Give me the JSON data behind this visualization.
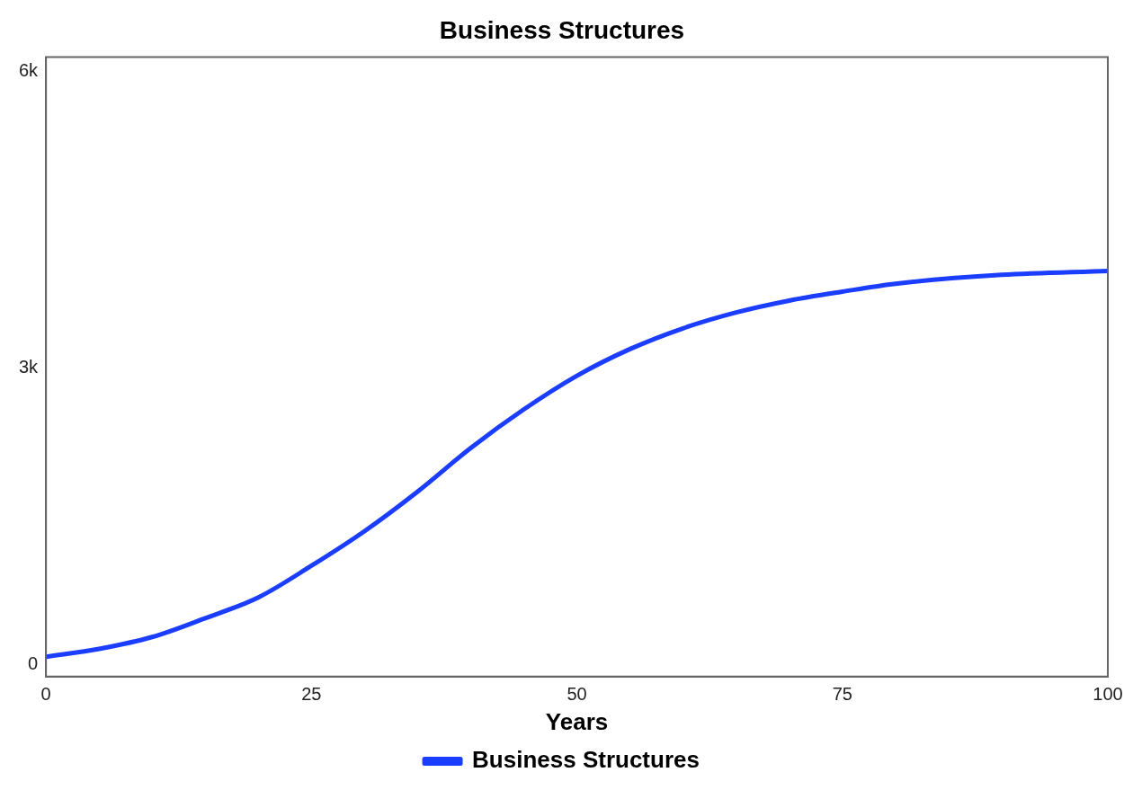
{
  "chart_data": {
    "type": "line",
    "title": "Business Structures",
    "xlabel": "Years",
    "x": [
      0,
      5,
      10,
      15,
      20,
      25,
      30,
      35,
      40,
      45,
      50,
      55,
      60,
      65,
      70,
      75,
      80,
      90,
      100
    ],
    "series": [
      {
        "name": "Business Structures",
        "color": "#1a3dff",
        "values": [
          80,
          160,
          280,
          470,
          680,
          1000,
          1350,
          1750,
          2190,
          2580,
          2920,
          3190,
          3400,
          3560,
          3680,
          3770,
          3850,
          3940,
          3980
        ]
      }
    ],
    "xlim": [
      0,
      100
    ],
    "xticks": [
      0,
      25,
      50,
      75,
      100
    ],
    "ylim": [
      -120,
      6140
    ],
    "yticks": [
      {
        "value": 0,
        "label": "0"
      },
      {
        "value": 3000,
        "label": "3k"
      },
      {
        "value": 6000,
        "label": "6k"
      }
    ],
    "grid": false,
    "legend": "bottom",
    "marker": "none",
    "line_style": "solid"
  }
}
